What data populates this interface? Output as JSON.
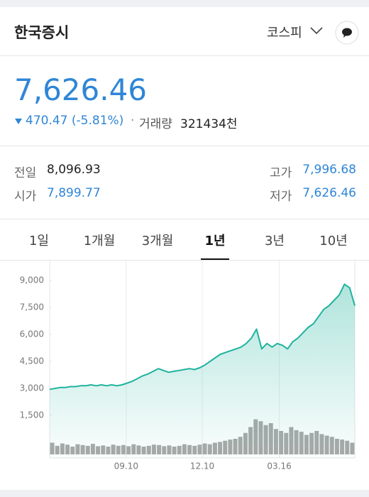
{
  "header": {
    "title": "한국증시",
    "market": "코스피"
  },
  "quote": {
    "price": "7,626.46",
    "change": "470.47 (-5.81%)",
    "volume_label": "거래량",
    "volume": "321434천"
  },
  "stats": [
    {
      "label": "전일",
      "value": "8,096.93"
    },
    {
      "label": "시가",
      "value": "7,899.77"
    },
    {
      "label": "고가",
      "value": "7,996.68"
    },
    {
      "label": "저가",
      "value": "7,626.46"
    }
  ],
  "tabs": {
    "items": [
      "1일",
      "1개월",
      "3개월",
      "1년",
      "3년",
      "10년"
    ],
    "selected": 3
  },
  "chart_data": {
    "type": "line",
    "series": [
      {
        "color": "#1fb39d",
        "values": [
          2950,
          3000,
          3050,
          3050,
          3100,
          3100,
          3150,
          3150,
          3200,
          3150,
          3200,
          3150,
          3200,
          3150,
          3200,
          3300,
          3400,
          3550,
          3700,
          3800,
          3950,
          4100,
          4000,
          3900,
          3950,
          4000,
          4050,
          4100,
          4050,
          4150,
          4300,
          4500,
          4700,
          4900,
          5000,
          5100,
          5200,
          5300,
          5500,
          5800,
          6300,
          5200,
          5500,
          5300,
          5500,
          5400,
          5200,
          5600,
          5800,
          6100,
          6400,
          6600,
          7000,
          7400,
          7600,
          7900,
          8200,
          8800,
          8600,
          7600
        ]
      }
    ],
    "volume": {
      "color": "#a9a9a9",
      "values": [
        30,
        22,
        28,
        25,
        20,
        26,
        24,
        22,
        27,
        21,
        23,
        20,
        25,
        22,
        24,
        21,
        26,
        23,
        20,
        22,
        25,
        24,
        21,
        23,
        20,
        22,
        26,
        24,
        22,
        25,
        28,
        26,
        30,
        32,
        35,
        38,
        40,
        45,
        55,
        70,
        90,
        85,
        75,
        80,
        65,
        60,
        55,
        70,
        62,
        58,
        50,
        55,
        60,
        52,
        48,
        45,
        40,
        38,
        35,
        30
      ],
      "vlim": [
        0,
        100
      ]
    },
    "xlim": [
      0,
      59
    ],
    "xticks": [
      {
        "value": 14.8,
        "label": "09.10"
      },
      {
        "value": 29.5,
        "label": "12.10"
      },
      {
        "value": 44.4,
        "label": "03.16"
      }
    ],
    "ylim": [
      0,
      9600
    ],
    "yticks": [
      {
        "value": 1500,
        "label": "1,500"
      },
      {
        "value": 3000,
        "label": "3,000"
      },
      {
        "value": 4500,
        "label": "4,500"
      },
      {
        "value": 6000,
        "label": "6,000"
      },
      {
        "value": 7500,
        "label": "7,500"
      },
      {
        "value": 9000,
        "label": "9,000"
      }
    ],
    "grid": true
  }
}
